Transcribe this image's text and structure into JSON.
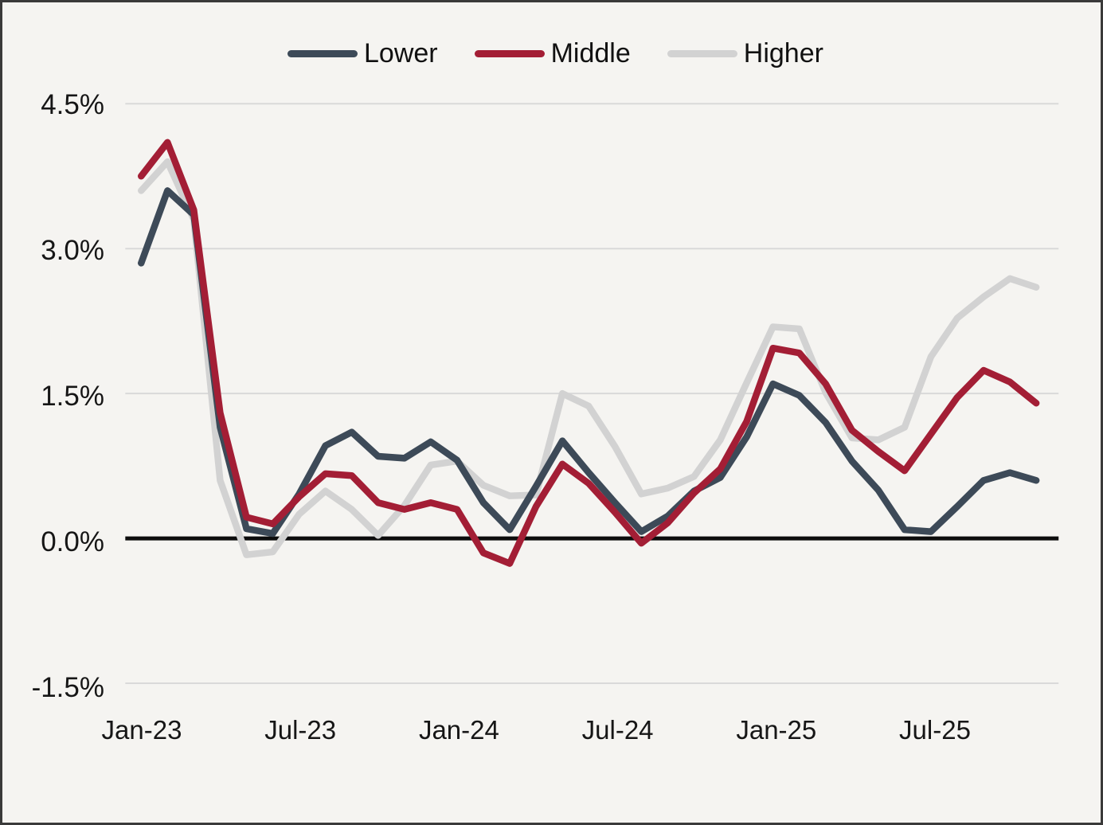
{
  "chart_data": {
    "type": "line",
    "title": "",
    "xlabel": "",
    "ylabel": "",
    "x": [
      "Jan-23",
      "Feb-23",
      "Mar-23",
      "Apr-23",
      "May-23",
      "Jun-23",
      "Jul-23",
      "Aug-23",
      "Sep-23",
      "Oct-23",
      "Nov-23",
      "Dec-23",
      "Jan-24",
      "Feb-24",
      "Mar-24",
      "Apr-24",
      "May-24",
      "Jun-24",
      "Jul-24",
      "Aug-24",
      "Sep-24",
      "Oct-24",
      "Nov-24",
      "Dec-24",
      "Jan-25",
      "Feb-25",
      "Mar-25",
      "Apr-25",
      "May-25",
      "Jun-25",
      "Jul-25",
      "Aug-25",
      "Sep-25",
      "Oct-25",
      "Nov-25"
    ],
    "series": [
      {
        "name": "Lower",
        "color": "#3d4a58",
        "values": [
          2.85,
          3.6,
          3.35,
          1.15,
          0.1,
          0.05,
          0.46,
          0.96,
          1.1,
          0.85,
          0.83,
          1.0,
          0.81,
          0.37,
          0.09,
          0.54,
          1.01,
          0.68,
          0.37,
          0.07,
          0.23,
          0.49,
          0.63,
          1.05,
          1.6,
          1.48,
          1.2,
          0.8,
          0.5,
          0.09,
          0.07,
          0.33,
          0.6,
          0.68,
          0.6
        ]
      },
      {
        "name": "Middle",
        "color": "#a31e35",
        "values": [
          3.75,
          4.1,
          3.4,
          1.3,
          0.22,
          0.15,
          0.43,
          0.67,
          0.65,
          0.37,
          0.3,
          0.37,
          0.3,
          -0.15,
          -0.26,
          0.33,
          0.77,
          0.57,
          0.27,
          -0.05,
          0.16,
          0.47,
          0.72,
          1.21,
          1.97,
          1.92,
          1.6,
          1.12,
          0.9,
          0.7,
          1.08,
          1.46,
          1.74,
          1.62,
          1.4
        ]
      },
      {
        "name": "Higher",
        "color": "#d2d2d2",
        "values": [
          3.6,
          3.9,
          3.3,
          0.6,
          -0.17,
          -0.14,
          0.25,
          0.49,
          0.3,
          0.03,
          0.34,
          0.76,
          0.8,
          0.55,
          0.44,
          0.45,
          1.5,
          1.37,
          0.95,
          0.46,
          0.52,
          0.64,
          1.02,
          1.61,
          2.19,
          2.17,
          1.51,
          1.04,
          1.02,
          1.15,
          1.88,
          2.28,
          2.5,
          2.69,
          2.6
        ]
      }
    ],
    "yticks": [
      {
        "value": 4.5,
        "label": "4.5%"
      },
      {
        "value": 3.0,
        "label": "3.0%"
      },
      {
        "value": 1.5,
        "label": "1.5%"
      },
      {
        "value": 0.0,
        "label": "0.0%"
      },
      {
        "value": -1.5,
        "label": "-1.5%"
      }
    ],
    "xticks": [
      {
        "index": 0,
        "label": "Jan-23"
      },
      {
        "index": 6,
        "label": "Jul-23"
      },
      {
        "index": 12,
        "label": "Jan-24"
      },
      {
        "index": 18,
        "label": "Jul-24"
      },
      {
        "index": 24,
        "label": "Jan-25"
      },
      {
        "index": 30,
        "label": "Jul-25"
      }
    ],
    "ylim": [
      -1.75,
      4.75
    ],
    "grid": "horizontal",
    "legend_position": "top-center",
    "zero_line": true
  },
  "colors": {
    "background": "#f5f4f1",
    "gridline": "#d9d9d9",
    "zero_line": "#0d0d0d",
    "text": "#161616",
    "frame_border": "#3a3a3a"
  }
}
